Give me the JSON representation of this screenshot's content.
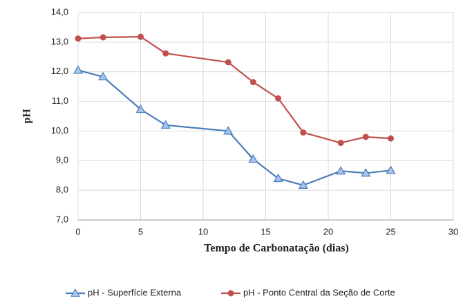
{
  "chart_data": {
    "type": "line",
    "xlabel": "Tempo de Carbonatação (dias)",
    "ylabel": "pH",
    "xlim": [
      0,
      30
    ],
    "xticks": [
      0,
      5,
      10,
      15,
      20,
      25,
      30
    ],
    "ylim": [
      7,
      14
    ],
    "yticks": [
      {
        "value": 7,
        "label": "7,0"
      },
      {
        "value": 8,
        "label": "8,0"
      },
      {
        "value": 9,
        "label": "9,0"
      },
      {
        "value": 10,
        "label": "10,0"
      },
      {
        "value": 11,
        "label": "11,0"
      },
      {
        "value": 12,
        "label": "12,0"
      },
      {
        "value": 13,
        "label": "13,0"
      },
      {
        "value": 14,
        "label": "14,0"
      }
    ],
    "grid": true,
    "legend": "bottom",
    "x": [
      0,
      2,
      5,
      7,
      12,
      14,
      16,
      18,
      21,
      23,
      25
    ],
    "series": [
      {
        "name": "pH - Superfície Externa",
        "color": "#4a7ebb",
        "marker": "triangle",
        "values": [
          12.05,
          11.83,
          10.73,
          10.2,
          10.0,
          9.05,
          8.4,
          8.17,
          8.65,
          8.58,
          8.67
        ]
      },
      {
        "name": "pH - Ponto Central da Seção de Corte",
        "color": "#c0504d",
        "marker": "circle",
        "values": [
          13.12,
          13.16,
          13.18,
          12.62,
          12.32,
          11.65,
          11.1,
          9.95,
          9.6,
          9.8,
          9.75
        ]
      }
    ]
  }
}
